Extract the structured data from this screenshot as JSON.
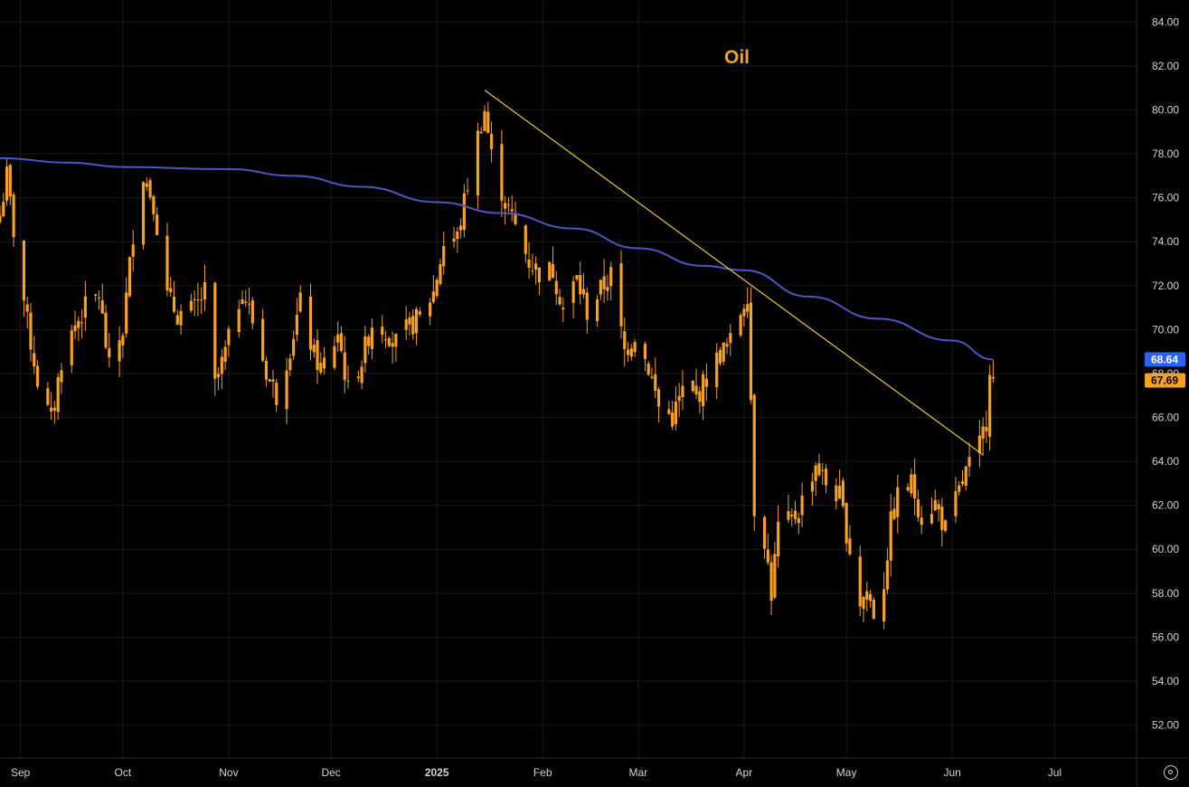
{
  "chart_data": {
    "type": "candlestick",
    "title": "Oil",
    "ylim": [
      50.5,
      85.0
    ],
    "y_ticks": [
      52,
      54,
      56,
      58,
      60,
      62,
      64,
      66,
      68,
      70,
      72,
      74,
      76,
      78,
      80,
      82,
      84
    ],
    "y_tick_labels": [
      "52.00",
      "54.00",
      "56.00",
      "58.00",
      "60.00",
      "62.00",
      "64.00",
      "66.00",
      "68.00",
      "70.00",
      "72.00",
      "74.00",
      "76.00",
      "78.00",
      "80.00",
      "82.00",
      "84.00"
    ],
    "x_range": [
      "2024-08-26",
      "2025-07-25"
    ],
    "x_ticks": [
      {
        "date": "2024-09-01",
        "label": "Sep"
      },
      {
        "date": "2024-10-01",
        "label": "Oct"
      },
      {
        "date": "2024-11-01",
        "label": "Nov"
      },
      {
        "date": "2024-12-01",
        "label": "Dec"
      },
      {
        "date": "2025-01-01",
        "label": "2025",
        "bold": true
      },
      {
        "date": "2025-02-01",
        "label": "Feb"
      },
      {
        "date": "2025-03-01",
        "label": "Mar"
      },
      {
        "date": "2025-04-01",
        "label": "Apr"
      },
      {
        "date": "2025-05-01",
        "label": "May"
      },
      {
        "date": "2025-06-01",
        "label": "Jun"
      },
      {
        "date": "2025-07-01",
        "label": "Jul"
      }
    ],
    "candle_close_anchors": [
      [
        "2024-08-26",
        75.2
      ],
      [
        "2024-08-28",
        77.0
      ],
      [
        "2024-08-30",
        74.5
      ],
      [
        "2024-09-03",
        70.3
      ],
      [
        "2024-09-06",
        67.7
      ],
      [
        "2024-09-10",
        65.8
      ],
      [
        "2024-09-13",
        68.6
      ],
      [
        "2024-09-17",
        70.2
      ],
      [
        "2024-09-20",
        71.0
      ],
      [
        "2024-09-24",
        71.6
      ],
      [
        "2024-09-27",
        68.2
      ],
      [
        "2024-10-01",
        70.0
      ],
      [
        "2024-10-04",
        74.4
      ],
      [
        "2024-10-07",
        77.1
      ],
      [
        "2024-10-10",
        75.8
      ],
      [
        "2024-10-14",
        71.5
      ],
      [
        "2024-10-17",
        70.7
      ],
      [
        "2024-10-22",
        70.9
      ],
      [
        "2024-10-25",
        71.7
      ],
      [
        "2024-10-28",
        67.4
      ],
      [
        "2024-11-01",
        69.5
      ],
      [
        "2024-11-05",
        71.9
      ],
      [
        "2024-11-08",
        70.4
      ],
      [
        "2024-11-12",
        68.1
      ],
      [
        "2024-11-15",
        67.0
      ],
      [
        "2024-11-19",
        69.2
      ],
      [
        "2024-11-22",
        71.2
      ],
      [
        "2024-11-26",
        68.8
      ],
      [
        "2024-11-29",
        68.0
      ],
      [
        "2024-12-03",
        69.9
      ],
      [
        "2024-12-06",
        67.2
      ],
      [
        "2024-12-10",
        68.6
      ],
      [
        "2024-12-13",
        70.3
      ],
      [
        "2024-12-17",
        70.0
      ],
      [
        "2024-12-20",
        69.4
      ],
      [
        "2024-12-24",
        70.1
      ],
      [
        "2024-12-27",
        70.6
      ],
      [
        "2024-12-31",
        71.7
      ],
      [
        "2025-01-03",
        73.9
      ],
      [
        "2025-01-07",
        74.2
      ],
      [
        "2025-01-10",
        76.6
      ],
      [
        "2025-01-13",
        78.8
      ],
      [
        "2025-01-15",
        80.0
      ],
      [
        "2025-01-17",
        77.9
      ],
      [
        "2025-01-21",
        75.8
      ],
      [
        "2025-01-24",
        74.7
      ],
      [
        "2025-01-28",
        73.1
      ],
      [
        "2025-01-31",
        72.6
      ],
      [
        "2025-02-04",
        72.7
      ],
      [
        "2025-02-07",
        71.0
      ],
      [
        "2025-02-11",
        72.3
      ],
      [
        "2025-02-14",
        70.8
      ],
      [
        "2025-02-18",
        71.8
      ],
      [
        "2025-02-21",
        72.5
      ],
      [
        "2025-02-25",
        69.0
      ],
      [
        "2025-02-28",
        69.8
      ],
      [
        "2025-03-04",
        68.3
      ],
      [
        "2025-03-07",
        66.5
      ],
      [
        "2025-03-11",
        66.0
      ],
      [
        "2025-03-14",
        67.2
      ],
      [
        "2025-03-18",
        66.9
      ],
      [
        "2025-03-21",
        67.8
      ],
      [
        "2025-03-25",
        68.9
      ],
      [
        "2025-03-28",
        69.4
      ],
      [
        "2025-04-01",
        71.3
      ],
      [
        "2025-04-02",
        71.7
      ],
      [
        "2025-04-03",
        66.9
      ],
      [
        "2025-04-04",
        61.9
      ],
      [
        "2025-04-07",
        60.5
      ],
      [
        "2025-04-09",
        58.0
      ],
      [
        "2025-04-11",
        61.0
      ],
      [
        "2025-04-15",
        61.3
      ],
      [
        "2025-04-17",
        61.8
      ],
      [
        "2025-04-22",
        63.9
      ],
      [
        "2025-04-25",
        63.0
      ],
      [
        "2025-04-29",
        62.4
      ],
      [
        "2025-05-02",
        60.0
      ],
      [
        "2025-05-05",
        57.6
      ],
      [
        "2025-05-07",
        58.1
      ],
      [
        "2025-05-09",
        57.1
      ],
      [
        "2025-05-12",
        58.5
      ],
      [
        "2025-05-14",
        61.2
      ],
      [
        "2025-05-16",
        62.4
      ],
      [
        "2025-05-20",
        63.0
      ],
      [
        "2025-05-23",
        61.5
      ],
      [
        "2025-05-27",
        62.1
      ],
      [
        "2025-05-30",
        60.9
      ],
      [
        "2025-06-03",
        62.6
      ],
      [
        "2025-06-05",
        63.5
      ],
      [
        "2025-06-09",
        64.7
      ],
      [
        "2025-06-11",
        65.9
      ],
      [
        "2025-06-12",
        68.4
      ],
      [
        "2025-06-13",
        67.69
      ]
    ],
    "series": [
      {
        "name": "",
        "kind": "moving-average",
        "color": "#4d56c8",
        "points": [
          [
            "2024-08-26",
            77.8
          ],
          [
            "2024-09-15",
            77.6
          ],
          [
            "2024-10-01",
            77.4
          ],
          [
            "2024-11-01",
            77.3
          ],
          [
            "2024-11-20",
            77.0
          ],
          [
            "2024-12-10",
            76.5
          ],
          [
            "2025-01-01",
            75.8
          ],
          [
            "2025-01-20",
            75.3
          ],
          [
            "2025-02-10",
            74.6
          ],
          [
            "2025-03-01",
            73.7
          ],
          [
            "2025-03-20",
            72.9
          ],
          [
            "2025-04-01",
            72.7
          ],
          [
            "2025-04-20",
            71.5
          ],
          [
            "2025-05-10",
            70.5
          ],
          [
            "2025-06-01",
            69.5
          ],
          [
            "2025-06-13",
            68.64
          ]
        ]
      },
      {
        "name": "",
        "kind": "trendline",
        "color": "#e8c93b",
        "points": [
          [
            "2025-01-15",
            80.9
          ],
          [
            "2025-06-10",
            64.3
          ]
        ]
      }
    ],
    "last_price_label": {
      "value": "67.69",
      "color": "#f7a021"
    },
    "ma_price_label": {
      "value": "68.64",
      "color": "#2962ff"
    },
    "candle_color": "#f7a021",
    "grid": true,
    "background": "#000000"
  }
}
